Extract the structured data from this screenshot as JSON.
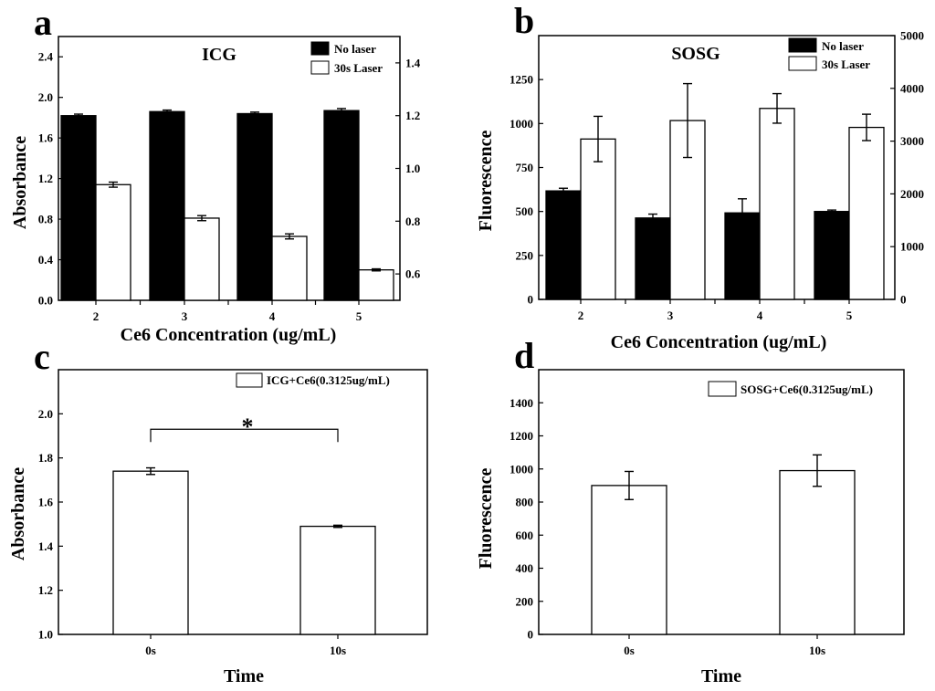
{
  "chart_data": [
    {
      "id": "a",
      "panel_label": "a",
      "type": "bar",
      "title": "ICG",
      "xlabel": "Ce6 Concentration (ug/mL)",
      "ylabel": "Absorbance",
      "categories": [
        "2",
        "3",
        "4",
        "5"
      ],
      "ylim": [
        0.0,
        2.6
      ],
      "yticks": [
        "0.0",
        "0.4",
        "0.8",
        "1.2",
        "1.6",
        "2.0",
        "2.4"
      ],
      "y2lim": [
        0.5,
        1.5
      ],
      "y2ticks": [
        "0.6",
        "0.8",
        "1.0",
        "1.2",
        "1.4"
      ],
      "legend_position": "top-right",
      "series": [
        {
          "name": "No laser",
          "color": "#000000",
          "axis": "left",
          "values": [
            1.82,
            1.86,
            1.84,
            1.87
          ],
          "errors": [
            0.015,
            0.015,
            0.015,
            0.02
          ]
        },
        {
          "name": "30s Laser",
          "color": "#ffffff",
          "axis": "left",
          "values": [
            1.14,
            0.81,
            0.63,
            0.3
          ],
          "errors": [
            0.025,
            0.025,
            0.025,
            0.01
          ]
        }
      ]
    },
    {
      "id": "b",
      "panel_label": "b",
      "type": "bar",
      "title": "SOSG",
      "xlabel": "Ce6 Concentration (ug/mL)",
      "ylabel": "Fluorescence",
      "categories": [
        "2",
        "3",
        "4",
        "5"
      ],
      "ylim": [
        0,
        1500
      ],
      "yticks": [
        "0",
        "250",
        "500",
        "750",
        "1000",
        "1250"
      ],
      "y2lim": [
        0,
        5000
      ],
      "y2ticks": [
        "0",
        "1000",
        "2000",
        "3000",
        "4000",
        "5000"
      ],
      "legend_position": "top-right",
      "series": [
        {
          "name": "No laser",
          "color": "#000000",
          "axis": "left",
          "values": [
            617,
            463,
            492,
            500
          ],
          "errors": [
            15,
            22,
            80,
            8
          ]
        },
        {
          "name": "30s Laser",
          "color": "#ffffff",
          "axis": "right",
          "values": [
            3040,
            3390,
            3620,
            3260
          ],
          "errors": [
            430,
            700,
            280,
            250
          ]
        }
      ]
    },
    {
      "id": "c",
      "panel_label": "c",
      "type": "bar",
      "title": "",
      "xlabel": "Time",
      "ylabel": "Absorbance",
      "categories": [
        "0s",
        "10s"
      ],
      "ylim": [
        1.0,
        2.2
      ],
      "yticks": [
        "1.0",
        "1.2",
        "1.4",
        "1.6",
        "1.8",
        "2.0"
      ],
      "legend_position": "top-right",
      "series": [
        {
          "name": "ICG+Ce6(0.3125ug/mL)",
          "color": "#ffffff",
          "axis": "left",
          "values": [
            1.74,
            1.49
          ],
          "errors": [
            0.015,
            0.005
          ]
        }
      ],
      "annotation": {
        "text": "*",
        "from": "0s",
        "to": "10s",
        "level": 1.93
      }
    },
    {
      "id": "d",
      "panel_label": "d",
      "type": "bar",
      "title": "",
      "xlabel": "Time",
      "ylabel": "Fluorescence",
      "categories": [
        "0s",
        "10s"
      ],
      "ylim": [
        0,
        1600
      ],
      "yticks": [
        "0",
        "200",
        "400",
        "600",
        "800",
        "1000",
        "1200",
        "1400"
      ],
      "legend_position": "top-right",
      "series": [
        {
          "name": "SOSG+Ce6(0.3125ug/mL)",
          "color": "#ffffff",
          "axis": "left",
          "values": [
            900,
            990
          ],
          "errors": [
            85,
            95
          ]
        }
      ]
    }
  ]
}
